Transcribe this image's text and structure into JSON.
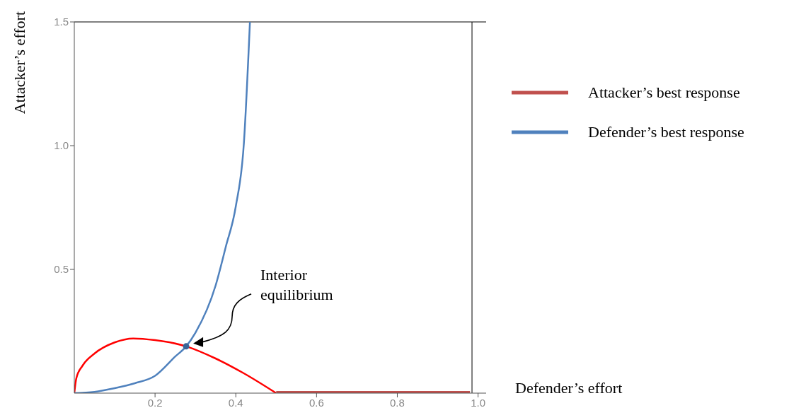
{
  "chart_data": {
    "type": "line",
    "xlabel": "Defender’s effort",
    "ylabel": "Attacker’s effort",
    "xlim": [
      0,
      1.02
    ],
    "ylim": [
      0,
      1.5
    ],
    "xticks": [
      0.2,
      0.4,
      0.6,
      0.8,
      {
        "value": 1,
        "label": "1.0"
      }
    ],
    "yticks": [
      0.5,
      {
        "value": 1,
        "label": "1.0"
      },
      1.5
    ],
    "grid": false,
    "legend": "right",
    "marker": "none",
    "line_style": "solid",
    "ref_lines": [
      {
        "axis": "y",
        "value": 1.5,
        "color": "#000000"
      },
      {
        "axis": "x",
        "value": 0.985,
        "color": "#000000"
      }
    ],
    "annotations": [
      "Interior equilibrium"
    ],
    "series": [
      {
        "type": "line",
        "color": "#ff0000",
        "x": [
          0,
          0.005,
          0.02,
          0.05,
          0.1,
          0.146,
          0.2,
          0.277,
          0.35,
          0.42,
          0.5
        ],
        "values": [
          0,
          0.06,
          0.11,
          0.16,
          0.205,
          0.221,
          0.214,
          0.189,
          0.14,
          0.08,
          0
        ]
      },
      {
        "type": "line",
        "name": "Attacker’s best response",
        "color": "#c0504d",
        "x": [
          0.5,
          0.98
        ],
        "values": [
          0,
          0
        ]
      },
      {
        "type": "line",
        "name": "Defender’s best response",
        "color": "#4f81bd",
        "x": [
          0,
          0.05,
          0.1,
          0.15,
          0.2,
          0.25,
          0.277,
          0.3,
          0.35,
          0.375,
          0.4,
          0.42,
          0.435
        ],
        "values": [
          0,
          0.005,
          0.02,
          0.04,
          0.07,
          0.148,
          0.189,
          0.244,
          0.435,
          0.59,
          0.755,
          1.01,
          1.5
        ]
      },
      {
        "type": "scatter",
        "marker": "circle",
        "color": "#3b6496",
        "x": [
          0.277
        ],
        "values": [
          0.189
        ]
      }
    ]
  }
}
